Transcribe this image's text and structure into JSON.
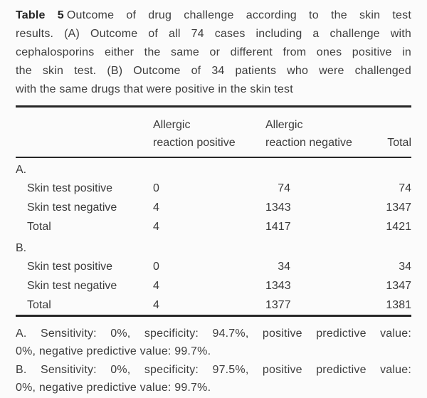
{
  "caption": {
    "label": "Table 5",
    "lines": [
      "Outcome of drug challenge according to the skin test",
      "results. (A) Outcome of all 74 cases including a challenge with",
      "cephalosporins either the same or different from ones positive in",
      "the skin test. (B) Outcome of 34 patients who were challenged",
      "with the same drugs that were positive in the skin test"
    ]
  },
  "table": {
    "headers": {
      "col2": {
        "line1": "Allergic",
        "line2": "reaction positive"
      },
      "col3": {
        "line1": "Allergic",
        "line2": "reaction negative"
      },
      "col4": "Total"
    },
    "sections": [
      {
        "label": "A.",
        "rows": [
          {
            "label": "Skin test positive",
            "positive": "0",
            "negative": "74",
            "total": "74"
          },
          {
            "label": "Skin test negative",
            "positive": "4",
            "negative": "1343",
            "total": "1347"
          },
          {
            "label": "Total",
            "positive": "4",
            "negative": "1417",
            "total": "1421"
          }
        ]
      },
      {
        "label": "B.",
        "rows": [
          {
            "label": "Skin test positive",
            "positive": "0",
            "negative": "34",
            "total": "34"
          },
          {
            "label": "Skin test negative",
            "positive": "4",
            "negative": "1343",
            "total": "1347"
          },
          {
            "label": "Total",
            "positive": "4",
            "negative": "1377",
            "total": "1381"
          }
        ]
      }
    ]
  },
  "footnotes": [
    {
      "line1": "A. Sensitivity: 0%, specificity: 94.7%, positive predictive value:",
      "line2": "0%, negative predictive value: 99.7%."
    },
    {
      "line1": "B. Sensitivity: 0%, specificity: 97.5%, positive predictive value:",
      "line2": "0%, negative predictive value: 99.7%."
    }
  ]
}
